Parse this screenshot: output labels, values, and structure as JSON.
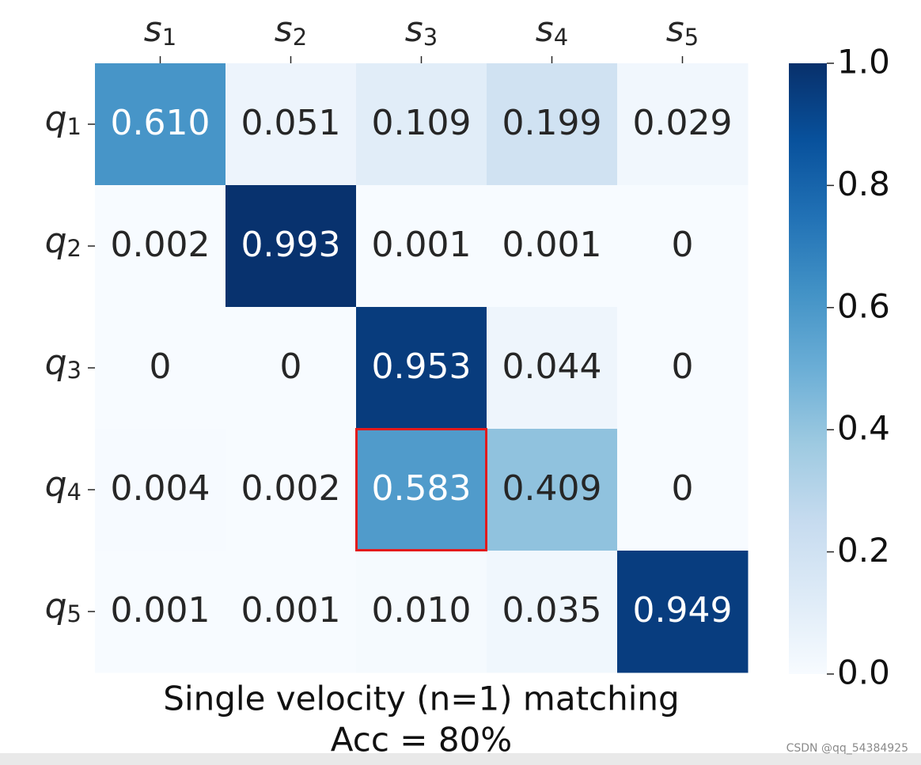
{
  "chart_data": {
    "type": "heatmap",
    "x_categories": [
      "s1",
      "s2",
      "s3",
      "s4",
      "s5"
    ],
    "y_categories": [
      "q1",
      "q2",
      "q3",
      "q4",
      "q5"
    ],
    "x_tick_labels": [
      {
        "base": "s",
        "sub": "1"
      },
      {
        "base": "s",
        "sub": "2"
      },
      {
        "base": "s",
        "sub": "3"
      },
      {
        "base": "s",
        "sub": "4"
      },
      {
        "base": "s",
        "sub": "5"
      }
    ],
    "y_tick_labels": [
      {
        "base": "q",
        "sub": "1"
      },
      {
        "base": "q",
        "sub": "2"
      },
      {
        "base": "q",
        "sub": "3"
      },
      {
        "base": "q",
        "sub": "4"
      },
      {
        "base": "q",
        "sub": "5"
      }
    ],
    "values": [
      [
        0.61,
        0.051,
        0.109,
        0.199,
        0.029
      ],
      [
        0.002,
        0.993,
        0.001,
        0.001,
        0
      ],
      [
        0,
        0,
        0.953,
        0.044,
        0
      ],
      [
        0.004,
        0.002,
        0.583,
        0.409,
        0
      ],
      [
        0.001,
        0.001,
        0.01,
        0.035,
        0.949
      ]
    ],
    "cell_labels": [
      [
        "0.610",
        "0.051",
        "0.109",
        "0.199",
        "0.029"
      ],
      [
        "0.002",
        "0.993",
        "0.001",
        "0.001",
        "0"
      ],
      [
        "0",
        "0",
        "0.953",
        "0.044",
        "0"
      ],
      [
        "0.004",
        "0.002",
        "0.583",
        "0.409",
        "0"
      ],
      [
        "0.001",
        "0.001",
        "0.010",
        "0.035",
        "0.949"
      ]
    ],
    "highlighted_cell": {
      "row": 3,
      "col": 2,
      "color": "#e31a1c"
    },
    "colormap": "Blues",
    "vmin": 0,
    "vmax": 1,
    "colorbar_ticks": [
      "0.0",
      "0.2",
      "0.4",
      "0.6",
      "0.8",
      "1.0"
    ],
    "x_axis_position": "top",
    "title_lines": [
      "Single velocity (n=1) matching",
      "Acc = 80%"
    ],
    "title_position": "bottom"
  },
  "watermark": "CSDN @qq_54384925",
  "colors": {
    "text_dark": "#262626",
    "text_light": "#ffffff",
    "highlight": "#e31a1c"
  }
}
